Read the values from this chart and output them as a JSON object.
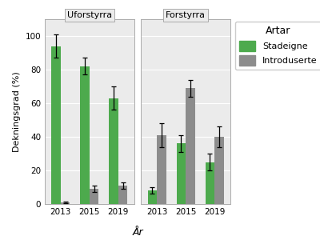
{
  "panels": [
    "Uforstyrra",
    "Forstyrra"
  ],
  "years": [
    "2013",
    "2015",
    "2019"
  ],
  "stadeigne_values": {
    "Uforstyrra": [
      94,
      82,
      63
    ],
    "Forstyrra": [
      8,
      36,
      25
    ]
  },
  "introduserte_values": {
    "Uforstyrra": [
      1,
      9,
      11
    ],
    "Forstyrra": [
      41,
      69,
      40
    ]
  },
  "stadeigne_errors": {
    "Uforstyrra": [
      7,
      5,
      7
    ],
    "Forstyrra": [
      2,
      5,
      5
    ]
  },
  "introduserte_errors": {
    "Uforstyrra": [
      0.3,
      2,
      2
    ],
    "Forstyrra": [
      7,
      5,
      6
    ]
  },
  "green_color": "#4daa4d",
  "gray_color": "#8c8c8c",
  "panel_bg": "#ebebeb",
  "grid_color": "#ffffff",
  "fig_bg": "#ffffff",
  "ylabel": "Dekningsgrad (%)",
  "xlabel": "År",
  "legend_title": "Artar",
  "legend_labels": [
    "Stadeigne",
    "Introduserte"
  ],
  "ylim": [
    0,
    110
  ],
  "yticks": [
    0,
    20,
    40,
    60,
    80,
    100
  ],
  "bar_width": 0.32
}
